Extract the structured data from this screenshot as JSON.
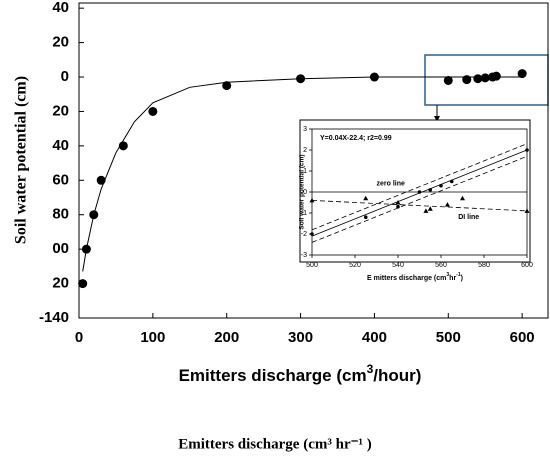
{
  "chart_data": [
    {
      "type": "scatter",
      "y_label": "Soil water potential (cm)",
      "x_label": [
        "Emitters discharge (cm",
        "3",
        "/hour)"
      ],
      "caption": "Emitters discharge (cm³ hr⁻¹ )",
      "x": [
        5,
        10,
        20,
        30,
        60,
        100,
        200,
        300,
        400,
        500,
        525,
        540,
        550,
        560,
        565,
        600
      ],
      "values": [
        -120,
        -100,
        -80,
        -60,
        -40,
        -20,
        -5,
        -1,
        0,
        -2,
        -1.5,
        -1,
        -0.5,
        0,
        0.5,
        2
      ],
      "color": "#000000",
      "curve": {
        "x": [
          5,
          10,
          20,
          30,
          50,
          75,
          100,
          150,
          200,
          300,
          400,
          500,
          600
        ],
        "values": [
          -113,
          -100,
          -80,
          -65,
          -44,
          -26,
          -15,
          -6,
          -3,
          -1,
          0,
          0,
          0
        ]
      },
      "xlim": [
        0,
        635
      ],
      "xticks": [
        0,
        100,
        200,
        300,
        400,
        500,
        600
      ],
      "ylim": [
        -140,
        43
      ],
      "yticks": [
        40,
        20,
        0,
        {
          "value": -20,
          "label": "20"
        },
        {
          "value": -40,
          "label": "40"
        },
        {
          "value": -60,
          "label": "60"
        },
        {
          "value": -80,
          "label": "80"
        },
        {
          "value": -100,
          "label": "00"
        },
        {
          "value": -120,
          "label": "20"
        },
        -140
      ]
    },
    {
      "type": "scatter",
      "title": "Y=0.04X-22.4; r2=0.99",
      "y_label": "Soil water potential (cm)",
      "x_label": [
        "E mitters discharge (cm",
        "3",
        "hr",
        "-1",
        ")"
      ],
      "series": [
        {
          "marker": "circle",
          "x": [
            500,
            525,
            540,
            550,
            555,
            560,
            565,
            600
          ],
          "values": [
            -2,
            -1.2,
            -0.7,
            0,
            0.1,
            0.3,
            0.5,
            2
          ]
        },
        {
          "marker": "triangle",
          "x": [
            500,
            525,
            540,
            553,
            555,
            563,
            570,
            600
          ],
          "values": [
            -0.4,
            -0.3,
            -0.5,
            -0.9,
            -0.8,
            -0.6,
            -0.3,
            -0.9
          ]
        }
      ],
      "lines": [
        {
          "style": "solid",
          "x": [
            500,
            600
          ],
          "values": [
            -2.1,
            2.0
          ]
        },
        {
          "style": "dashed",
          "x": [
            500,
            600
          ],
          "values": [
            -1.8,
            2.3
          ]
        },
        {
          "style": "dashed",
          "x": [
            500,
            600
          ],
          "values": [
            -2.4,
            1.7
          ]
        },
        {
          "style": "dashed",
          "x": [
            500,
            600
          ],
          "values": [
            -0.4,
            -0.9
          ]
        },
        {
          "style": "solid",
          "x": [
            500,
            600
          ],
          "values": [
            0,
            0
          ]
        }
      ],
      "annotations": [
        {
          "text": "zero line",
          "x": 530,
          "y": 0.4
        },
        {
          "text": "DI line",
          "x": 568,
          "y": -1.2
        }
      ],
      "xlim": [
        500,
        600
      ],
      "xticks": [
        500,
        520,
        540,
        560,
        580,
        600
      ],
      "ylim": [
        -3,
        3
      ],
      "yticks": [
        -3,
        -2,
        -1,
        0,
        1,
        2,
        3
      ]
    }
  ]
}
